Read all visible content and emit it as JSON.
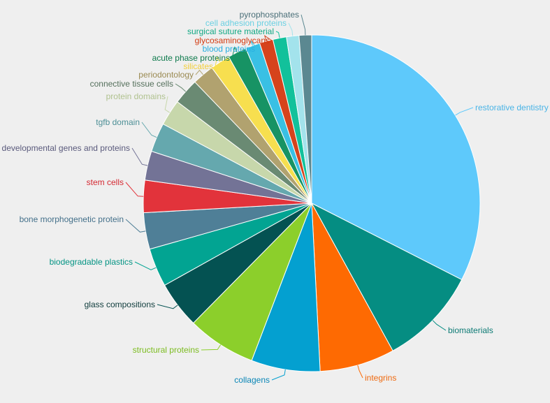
{
  "chart_data": {
    "type": "pie",
    "title": "",
    "slices": [
      {
        "label": "restorative dentistry",
        "value": 32.5,
        "color": "#5ec9fb",
        "label_color": "#4ab4e6"
      },
      {
        "label": "biomaterials",
        "value": 9.5,
        "color": "#058d82",
        "label_color": "#0c7a74"
      },
      {
        "label": "integrins",
        "value": 7.2,
        "color": "#fe6a02",
        "label_color": "#ef6a10"
      },
      {
        "label": "collagens",
        "value": 6.6,
        "color": "#04a0d0",
        "label_color": "#0a86b6"
      },
      {
        "label": "structural proteins",
        "value": 6.6,
        "color": "#8ccf2b",
        "label_color": "#7cbc20"
      },
      {
        "label": "glass compositions",
        "value": 4.5,
        "color": "#045252",
        "label_color": "#0e3b3b"
      },
      {
        "label": "biodegradable plastics",
        "value": 3.7,
        "color": "#02a492",
        "label_color": "#049484"
      },
      {
        "label": "bone morphogenetic protein",
        "value": 3.5,
        "color": "#4f7f97",
        "label_color": "#44708a"
      },
      {
        "label": "stem cells",
        "value": 3.1,
        "color": "#e2333b",
        "label_color": "#d42a33"
      },
      {
        "label": "developmental genes and proteins",
        "value": 2.8,
        "color": "#737396",
        "label_color": "#5a5a7c"
      },
      {
        "label": "tgfb domain",
        "value": 2.8,
        "color": "#65a8ae",
        "label_color": "#4d8f96"
      },
      {
        "label": "protein domains",
        "value": 2.5,
        "color": "#c7d7ab",
        "label_color": "#b0c28f"
      },
      {
        "label": "connective tissue cells",
        "value": 2.5,
        "color": "#6a8a73",
        "label_color": "#55705c"
      },
      {
        "label": "periodontology",
        "value": 2.1,
        "color": "#b1a26f",
        "label_color": "#9a8a52"
      },
      {
        "label": "silicates",
        "value": 1.9,
        "color": "#f7df4f",
        "label_color": "#f2cf3a"
      },
      {
        "label": "acute phase proteins",
        "value": 1.8,
        "color": "#179364",
        "label_color": "#0e7a4c"
      },
      {
        "label": "blood proteins",
        "value": 1.4,
        "color": "#39c0e4",
        "label_color": "#27aee0"
      },
      {
        "label": "glycosaminoglycans",
        "value": 1.3,
        "color": "#d6431c",
        "label_color": "#d23a10"
      },
      {
        "label": "surgical suture material",
        "value": 1.3,
        "color": "#12c19b",
        "label_color": "#10a883"
      },
      {
        "label": "cell adhesion proteins",
        "value": 1.2,
        "color": "#a3e3ec",
        "label_color": "#6ad0e2"
      },
      {
        "label": "pyrophosphates",
        "value": 1.2,
        "color": "#5b8891",
        "label_color": "#4a6f78"
      }
    ]
  }
}
